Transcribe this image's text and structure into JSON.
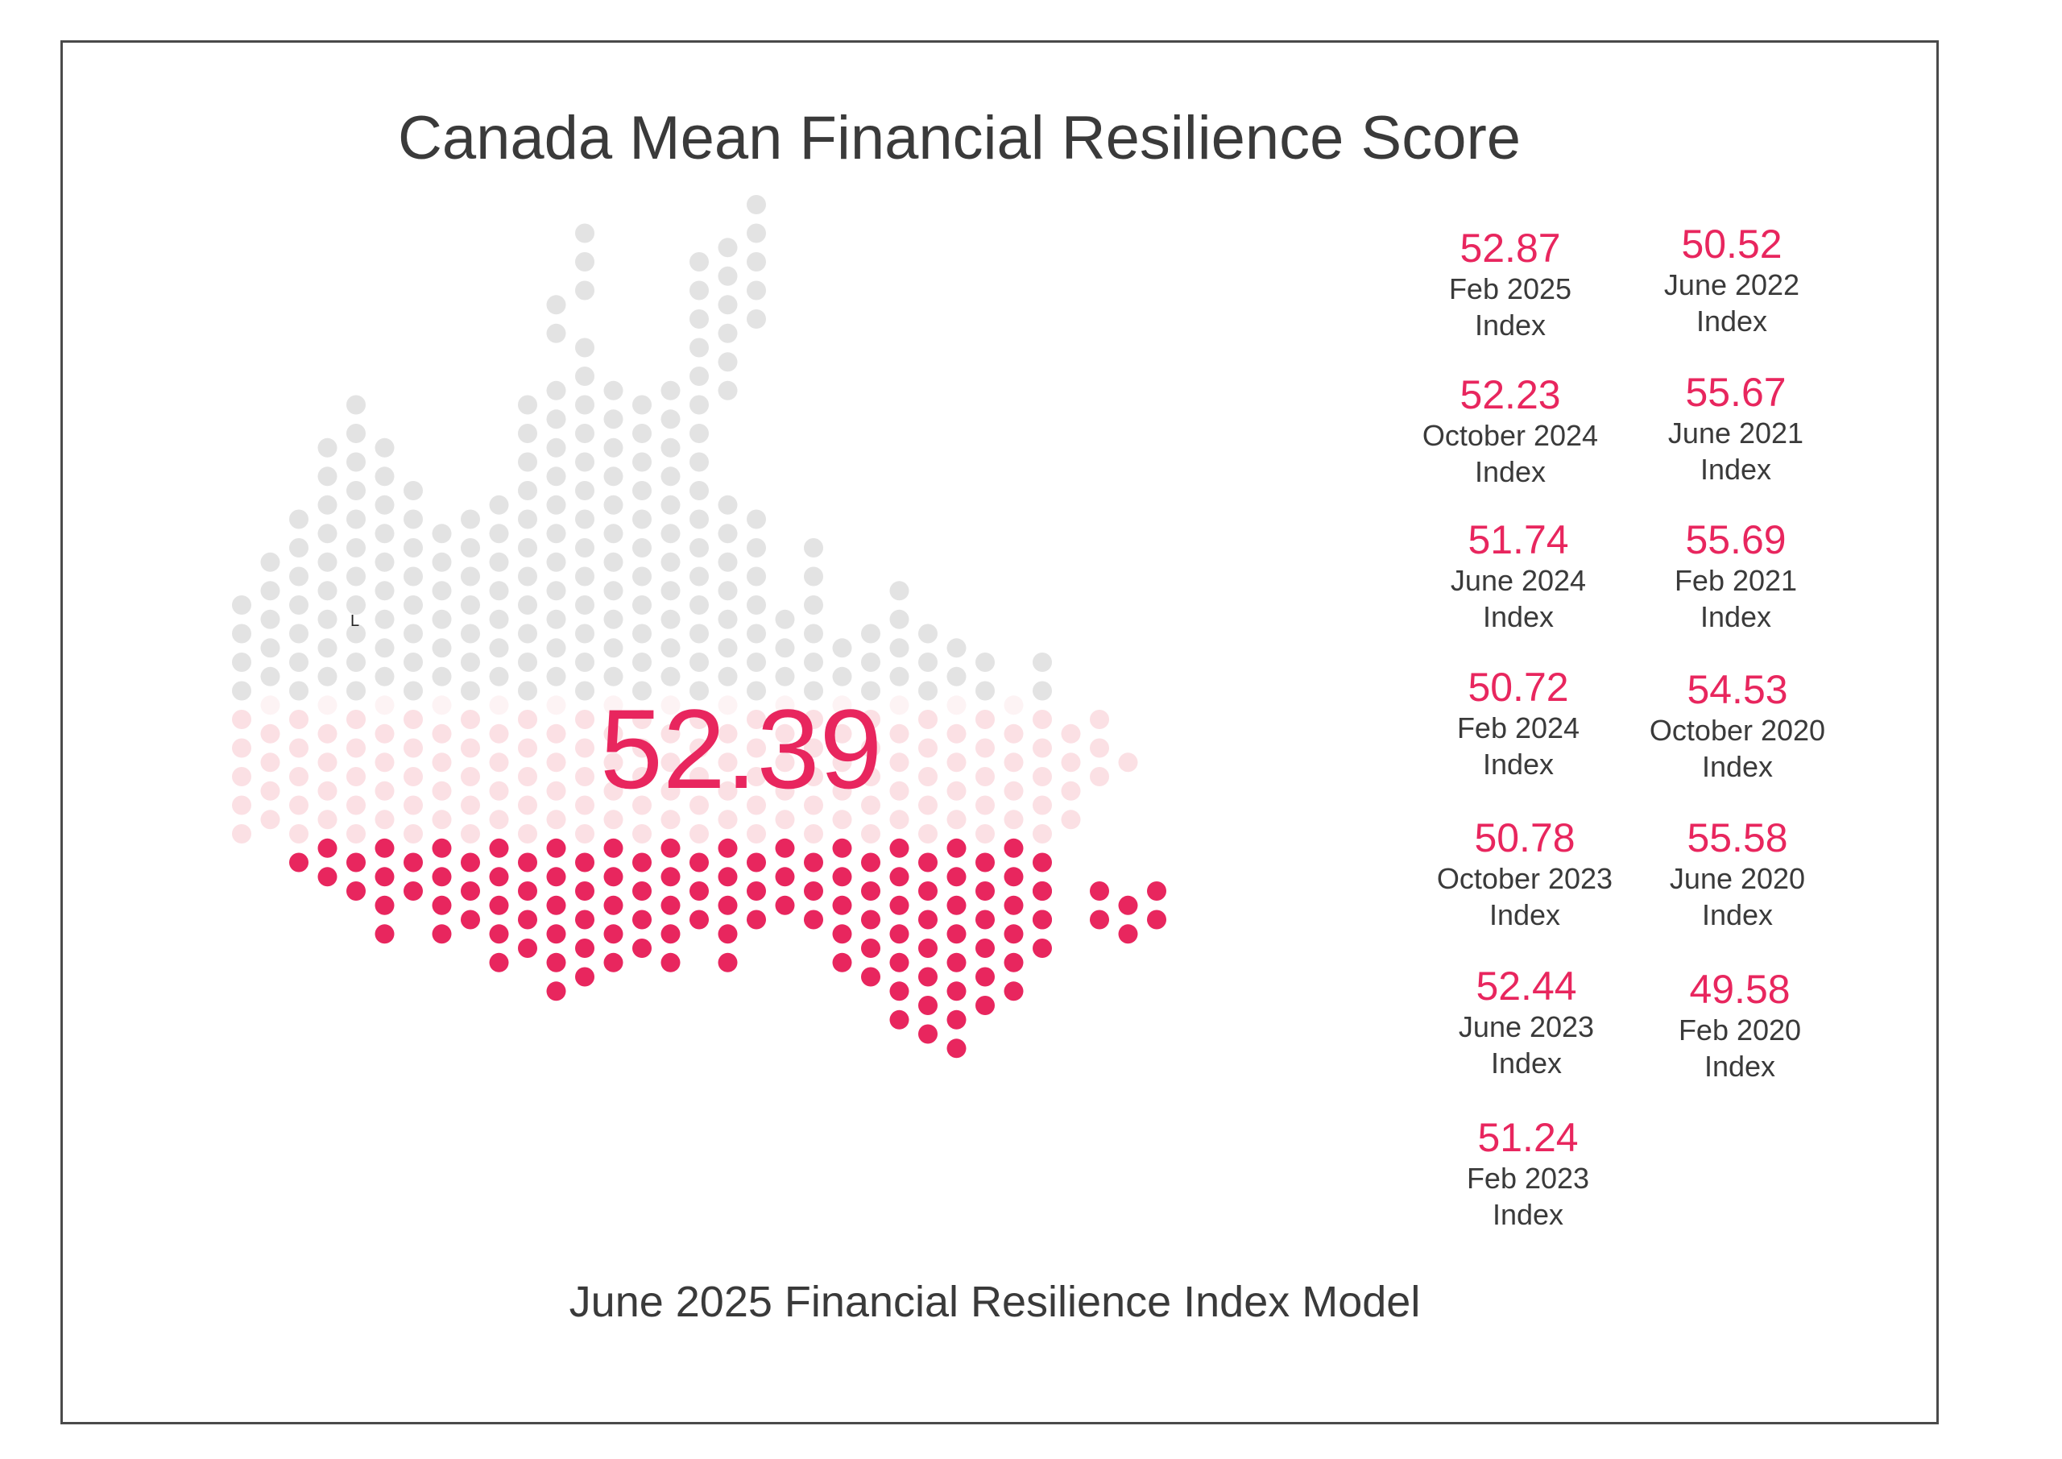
{
  "title": "Canada Mean Financial Resilience Score",
  "subtitle": "June 2025 Financial Resilience Index Model",
  "center_value": "52.39",
  "map_marker": "L",
  "colors": {
    "accent": "#e8265e",
    "fill_mid": "#fbe0e4",
    "fill_light": "#fdf3f4",
    "empty": "#e3e3e3",
    "text": "#3a3a3a"
  },
  "chart_data": {
    "type": "table",
    "title": "Canada Mean Financial Resilience Score",
    "current": {
      "value": 52.39,
      "label": "June 2025 Financial Resilience Index Model"
    },
    "entries": [
      {
        "value": "52.87",
        "period": "Feb 2025",
        "unit": "Index"
      },
      {
        "value": "52.23",
        "period": "October 2024",
        "unit": "Index"
      },
      {
        "value": "51.74",
        "period": "June 2024",
        "unit": "Index"
      },
      {
        "value": "50.72",
        "period": "Feb 2024",
        "unit": "Index"
      },
      {
        "value": "50.78",
        "period": "October 2023",
        "unit": "Index"
      },
      {
        "value": "52.44",
        "period": "June 2023",
        "unit": "Index"
      },
      {
        "value": "51.24",
        "period": "Feb 2023",
        "unit": "Index"
      },
      {
        "value": "50.52",
        "period": "June 2022",
        "unit": "Index"
      },
      {
        "value": "55.67",
        "period": "June 2021",
        "unit": "Index"
      },
      {
        "value": "55.69",
        "period": "Feb 2021",
        "unit": "Index"
      },
      {
        "value": "54.53",
        "period": "October 2020",
        "unit": "Index"
      },
      {
        "value": "55.58",
        "period": "June 2020",
        "unit": "Index"
      },
      {
        "value": "49.58",
        "period": "Feb 2020",
        "unit": "Index"
      }
    ]
  }
}
